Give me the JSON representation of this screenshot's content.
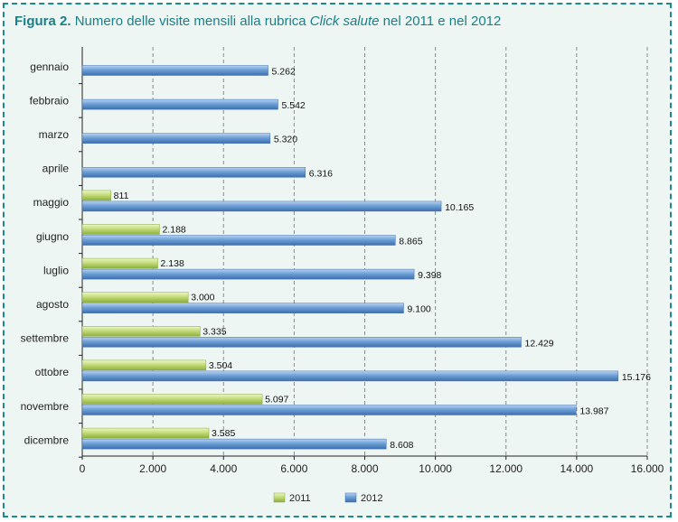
{
  "title": {
    "prefix": "Figura 2.",
    "text_before": "Numero delle visite mensili alla rubrica",
    "italic": "Click salute",
    "text_after": "nel 2011 e nel 2012"
  },
  "colors": {
    "accent": "#1a7f86",
    "frame_border": "#1a8a8a",
    "background": "#eef6f4",
    "series_2011": "#c3dc7a",
    "series_2012": "#6d9fd6",
    "grid": "#8a8a8a"
  },
  "chart_data": {
    "type": "bar",
    "orientation": "horizontal",
    "categories": [
      "gennaio",
      "febbraio",
      "marzo",
      "aprile",
      "maggio",
      "giugno",
      "luglio",
      "agosto",
      "settembre",
      "ottobre",
      "novembre",
      "dicembre"
    ],
    "series": [
      {
        "name": "2011",
        "values": [
          null,
          null,
          null,
          null,
          811,
          2188,
          2138,
          3000,
          3335,
          3504,
          5097,
          3585
        ],
        "labels": [
          "",
          "",
          "",
          "",
          "811",
          "2.188",
          "2.138",
          "3.000",
          "3.335",
          "3.504",
          "5.097",
          "3.585"
        ]
      },
      {
        "name": "2012",
        "values": [
          5262,
          5542,
          5320,
          6316,
          10165,
          8865,
          9398,
          9100,
          12429,
          15176,
          13987,
          8608
        ],
        "labels": [
          "5.262",
          "5.542",
          "5.320",
          "6.316",
          "10.165",
          "8.865",
          "9.398",
          "9.100",
          "12.429",
          "15.176",
          "13.987",
          "8.608"
        ]
      }
    ],
    "xlim": [
      0,
      16000
    ],
    "xticks": [
      0,
      2000,
      4000,
      6000,
      8000,
      10000,
      12000,
      14000,
      16000
    ],
    "xtick_labels": [
      "0",
      "2.000",
      "4.000",
      "6.000",
      "8.000",
      "10.000",
      "12.000",
      "14.000",
      "16.000"
    ],
    "grid": true,
    "legend": "bottom-center",
    "xlabel": "",
    "ylabel": ""
  }
}
